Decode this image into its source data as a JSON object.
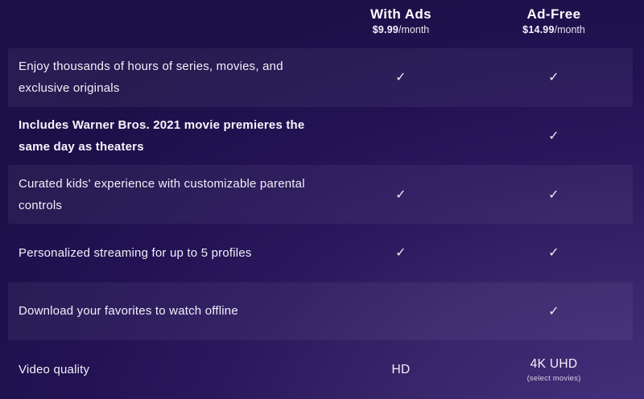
{
  "pricing_table": {
    "columns": [
      {
        "name": "With Ads",
        "price": "$9.99",
        "period": "/month"
      },
      {
        "name": "Ad-Free",
        "price": "$14.99",
        "period": "/month"
      }
    ],
    "check_glyph": "✓",
    "rows": [
      {
        "feature": "Enjoy thousands of hours of series, movies, and exclusive originals",
        "with_ads": "check",
        "ad_free": "check",
        "ad_free_note": "",
        "highlighted": true,
        "bold": false
      },
      {
        "feature": "Includes Warner Bros. 2021 movie premieres the same day as theaters",
        "with_ads": "",
        "ad_free": "check",
        "ad_free_note": "",
        "highlighted": false,
        "bold": true
      },
      {
        "feature": "Curated kids' experience with customizable parental controls",
        "with_ads": "check",
        "ad_free": "check",
        "ad_free_note": "",
        "highlighted": true,
        "bold": false
      },
      {
        "feature": "Personalized streaming for up to 5 profiles",
        "with_ads": "check",
        "ad_free": "check",
        "ad_free_note": "",
        "highlighted": false,
        "bold": false
      },
      {
        "feature": "Download your favorites to watch offline",
        "with_ads": "",
        "ad_free": "check",
        "ad_free_note": "",
        "highlighted": true,
        "bold": false
      },
      {
        "feature": "Video quality",
        "with_ads": "HD",
        "ad_free": "4K UHD",
        "ad_free_note": "(select movies)",
        "highlighted": false,
        "bold": false
      }
    ]
  },
  "colors": {
    "background_top_left": "#1c1048",
    "background_bottom_right": "#46317f",
    "row_highlight": "rgba(244,242,255,0.055)",
    "feature_text": "#f1eff9",
    "header_text": "#ffffff",
    "check": "#edebf7"
  }
}
